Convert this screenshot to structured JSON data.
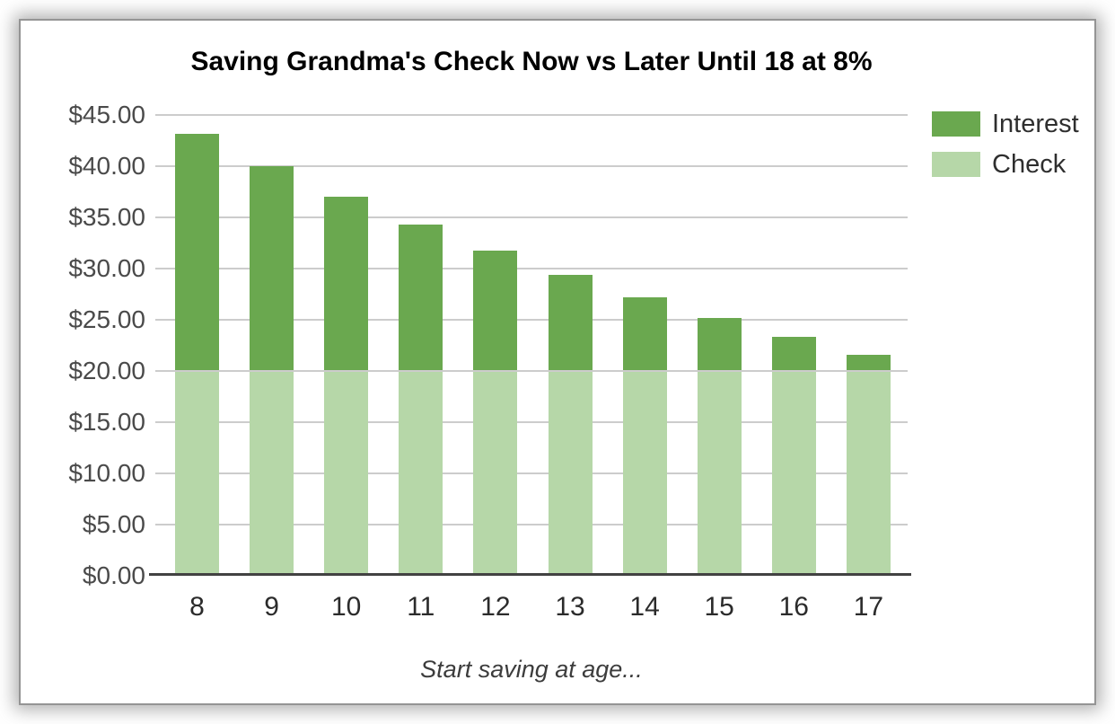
{
  "chart_data": {
    "type": "bar",
    "stacked": true,
    "title": "Saving Grandma's Check Now vs Later Until 18 at 8%",
    "xlabel": "Start saving at age...",
    "ylabel": "",
    "categories": [
      "8",
      "9",
      "10",
      "11",
      "12",
      "13",
      "14",
      "15",
      "16",
      "17"
    ],
    "series": [
      {
        "name": "Check",
        "color": "#b6d7a8",
        "values": [
          20,
          20,
          20,
          20,
          20,
          20,
          20,
          20,
          20,
          20
        ]
      },
      {
        "name": "Interest",
        "color": "#6aa84f",
        "values": [
          23.18,
          19.98,
          17.02,
          14.28,
          11.74,
          9.39,
          7.21,
          5.19,
          3.33,
          1.6
        ]
      }
    ],
    "totals": [
      43.18,
      39.98,
      37.02,
      34.28,
      31.74,
      29.39,
      27.21,
      25.19,
      23.33,
      21.6
    ],
    "ylim": [
      0,
      45
    ],
    "ytick_step": 5,
    "ytick_labels": [
      "$45.00",
      "$40.00",
      "$35.00",
      "$30.00",
      "$25.00",
      "$20.00",
      "$15.00",
      "$10.00",
      "$5.00",
      "$0.00"
    ],
    "grid": true,
    "legend": {
      "position": "top-right",
      "entries": [
        {
          "label": "Interest",
          "color": "#6aa84f"
        },
        {
          "label": "Check",
          "color": "#b6d7a8"
        }
      ]
    }
  },
  "colors": {
    "interest_green": "#6aa84f",
    "check_green": "#b6d7a8",
    "gridline": "#cccccc",
    "axis_baseline": "#424242",
    "tick_text": "#4a4a4a",
    "title_text": "#000000"
  }
}
